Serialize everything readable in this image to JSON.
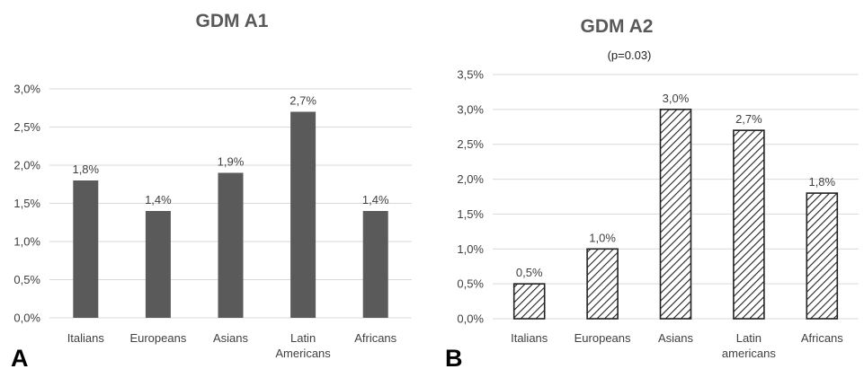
{
  "chart_data": [
    {
      "type": "bar",
      "panel_label": "A",
      "title": "GDM A1",
      "subtitle": "",
      "categories": [
        [
          "Italians"
        ],
        [
          "Europeans"
        ],
        [
          "Asians"
        ],
        [
          "Latin",
          "Americans"
        ],
        [
          "Africans"
        ]
      ],
      "values": [
        1.8,
        1.4,
        1.9,
        2.7,
        1.4
      ],
      "data_labels": [
        "1,8%",
        "1,4%",
        "1,9%",
        "2,7%",
        "1,4%"
      ],
      "y_ticks": [
        "0,0%",
        "0,5%",
        "1,0%",
        "1,5%",
        "2,0%",
        "2,5%",
        "3,0%"
      ],
      "ylim": [
        0,
        3.0
      ],
      "xlabel": "",
      "ylabel": "",
      "grid": true,
      "bar_style": "solid",
      "bar_color": "#5a5a5a"
    },
    {
      "type": "bar",
      "panel_label": "B",
      "title": "GDM A2",
      "subtitle": "(p=0.03)",
      "categories": [
        [
          "Italians"
        ],
        [
          "Europeans"
        ],
        [
          "Asians"
        ],
        [
          "Latin",
          "americans"
        ],
        [
          "Africans"
        ]
      ],
      "values": [
        0.5,
        1.0,
        3.0,
        2.7,
        1.8
      ],
      "data_labels": [
        "0,5%",
        "1,0%",
        "3,0%",
        "2,7%",
        "1,8%"
      ],
      "y_ticks": [
        "0,0%",
        "0,5%",
        "1,0%",
        "1,5%",
        "2,0%",
        "2,5%",
        "3,0%",
        "3,5%"
      ],
      "ylim": [
        0,
        3.5
      ],
      "xlabel": "",
      "ylabel": "",
      "grid": true,
      "bar_style": "diagonal-hatch",
      "bar_color": "#222222"
    }
  ]
}
